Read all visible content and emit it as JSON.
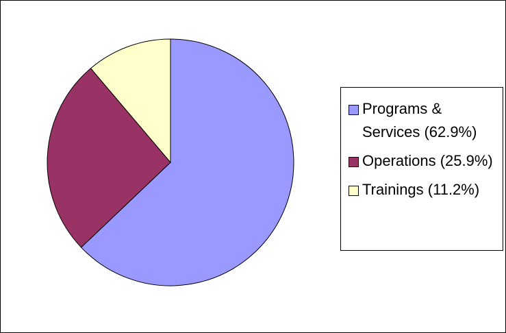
{
  "chart_data": {
    "type": "pie",
    "categories": [
      "Programs & Services (62.9%)",
      "Operations (25.9%)",
      "Trainings (11.2%)"
    ],
    "values": [
      62.9,
      25.9,
      11.2
    ],
    "colors": [
      "#9999ff",
      "#993366",
      "#ffffcc"
    ],
    "legend": "right"
  }
}
